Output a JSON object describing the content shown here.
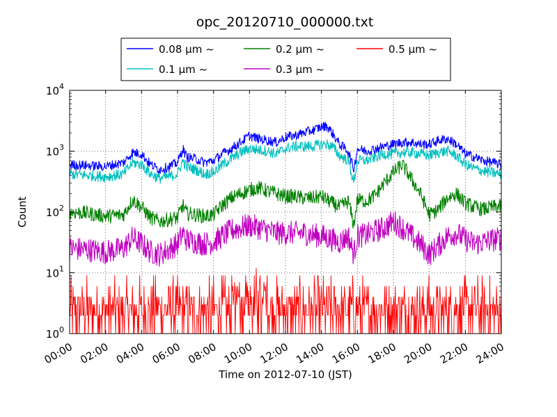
{
  "chart_data": {
    "type": "line",
    "title": "opc_20120710_000000.txt",
    "xlabel": "Time on 2012-07-10 (JST)",
    "ylabel": "Count",
    "yscale": "log",
    "xlim": [
      0,
      24
    ],
    "ylim": [
      1,
      10000
    ],
    "grid": true,
    "legend_position": "top",
    "x_tick_labels": [
      "00:00",
      "02:00",
      "04:00",
      "06:00",
      "08:00",
      "10:00",
      "12:00",
      "14:00",
      "16:00",
      "18:00",
      "20:00",
      "22:00",
      "24:00"
    ],
    "y_tick_bases": [
      "10",
      "10",
      "10",
      "10",
      "10"
    ],
    "y_tick_exponents": [
      "0",
      "1",
      "2",
      "3",
      "4"
    ],
    "x_hours": [
      0,
      1,
      2,
      3,
      3.5,
      4,
      4.5,
      5,
      5.5,
      6,
      6.3,
      6.5,
      7,
      7.5,
      8,
      8.5,
      9,
      9.5,
      10,
      10.5,
      11,
      11.5,
      12,
      12.5,
      13,
      13.5,
      14,
      14.3,
      14.6,
      15,
      15.5,
      15.8,
      16,
      16.5,
      17,
      17.5,
      18,
      18.5,
      19,
      19.5,
      20,
      20.5,
      21,
      21.5,
      22,
      22.5,
      23,
      23.5,
      24
    ],
    "series": [
      {
        "name": "0.08 μm ~",
        "color": "#0000ff",
        "values": [
          600,
          580,
          560,
          650,
          950,
          900,
          600,
          500,
          550,
          650,
          1100,
          800,
          750,
          650,
          700,
          900,
          1100,
          1400,
          1800,
          1600,
          1500,
          1400,
          1700,
          1800,
          2000,
          2200,
          2500,
          2600,
          2000,
          1300,
          1000,
          500,
          1100,
          1000,
          1100,
          1200,
          1300,
          1400,
          1400,
          1300,
          1300,
          1500,
          1600,
          1300,
          900,
          800,
          700,
          650,
          600
        ]
      },
      {
        "name": "0.1 μm ~",
        "color": "#00bfbf",
        "values": [
          420,
          400,
          380,
          420,
          650,
          600,
          420,
          360,
          380,
          420,
          700,
          550,
          500,
          420,
          450,
          600,
          750,
          950,
          1100,
          1050,
          1000,
          900,
          1100,
          1200,
          1200,
          1200,
          1300,
          1300,
          1200,
          850,
          700,
          300,
          700,
          700,
          800,
          900,
          900,
          950,
          950,
          900,
          850,
          950,
          1000,
          850,
          600,
          520,
          470,
          440,
          420
        ]
      },
      {
        "name": "0.2 μm ~",
        "color": "#008000",
        "values": [
          100,
          95,
          85,
          90,
          160,
          120,
          80,
          70,
          75,
          80,
          130,
          95,
          90,
          85,
          90,
          130,
          170,
          200,
          230,
          250,
          220,
          200,
          180,
          180,
          170,
          170,
          180,
          160,
          140,
          120,
          150,
          60,
          160,
          150,
          190,
          300,
          450,
          600,
          350,
          200,
          90,
          110,
          170,
          200,
          140,
          120,
          110,
          120,
          125
        ]
      },
      {
        "name": "0.3 μm ~",
        "color": "#bf00bf",
        "values": [
          25,
          24,
          22,
          25,
          38,
          30,
          22,
          20,
          24,
          30,
          45,
          35,
          32,
          30,
          32,
          40,
          50,
          55,
          60,
          55,
          50,
          45,
          45,
          45,
          45,
          42,
          40,
          38,
          35,
          32,
          40,
          20,
          40,
          42,
          48,
          55,
          70,
          55,
          40,
          30,
          20,
          28,
          40,
          45,
          35,
          30,
          32,
          35,
          36
        ]
      },
      {
        "name": "0.5 μm ~",
        "color": "#ff0000",
        "values": [
          3,
          3,
          3,
          3,
          3,
          3,
          3,
          3,
          3,
          3,
          3,
          3,
          3,
          3,
          3,
          3,
          4,
          5,
          6,
          5,
          4,
          4,
          4,
          4,
          4,
          4,
          4,
          4,
          4,
          3,
          4,
          3,
          4,
          4,
          4,
          4,
          5,
          4,
          4,
          3,
          3,
          3,
          3,
          4,
          3,
          3,
          3,
          3,
          3
        ]
      }
    ]
  }
}
